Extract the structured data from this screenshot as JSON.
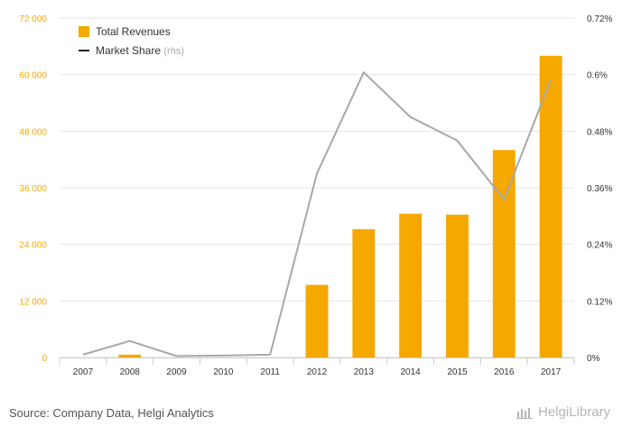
{
  "chart_data": {
    "type": "bar",
    "categories": [
      "2007",
      "2008",
      "2009",
      "2010",
      "2011",
      "2012",
      "2013",
      "2014",
      "2015",
      "2016",
      "2017"
    ],
    "series": [
      {
        "name": "Total Revenues",
        "type": "bar",
        "axis": "left",
        "color": "#F5A800",
        "values": [
          0,
          600,
          0,
          0,
          0,
          15400,
          27200,
          30500,
          30300,
          44000,
          64000
        ]
      },
      {
        "name": "Market Share",
        "type": "line",
        "axis": "right",
        "color": "#a8a8a8",
        "values": [
          0.006,
          0.035,
          0.003,
          0.004,
          0.006,
          0.39,
          0.605,
          0.51,
          0.46,
          0.335,
          0.59
        ]
      }
    ],
    "legend": {
      "items": [
        {
          "label": "Total Revenues",
          "marker": "square"
        },
        {
          "label": "Market Share",
          "marker": "line",
          "suffix": "(rhs)"
        }
      ],
      "position": "top-left"
    },
    "y_left": {
      "ylim": [
        0,
        72000
      ],
      "ticks": [
        "0",
        "12 000",
        "24 000",
        "36 000",
        "48 000",
        "60 000",
        "72 000"
      ],
      "tick_color": "#F5A800"
    },
    "y_right": {
      "ylim": [
        0,
        0.72
      ],
      "ticks": [
        "0%",
        "0.12%",
        "0.24%",
        "0.36%",
        "0.48%",
        "0.6%",
        "0.72%"
      ]
    },
    "grid": true
  },
  "footer": {
    "source": "Source: Company Data, Helgi Analytics",
    "brand": "HelgiLibrary"
  }
}
